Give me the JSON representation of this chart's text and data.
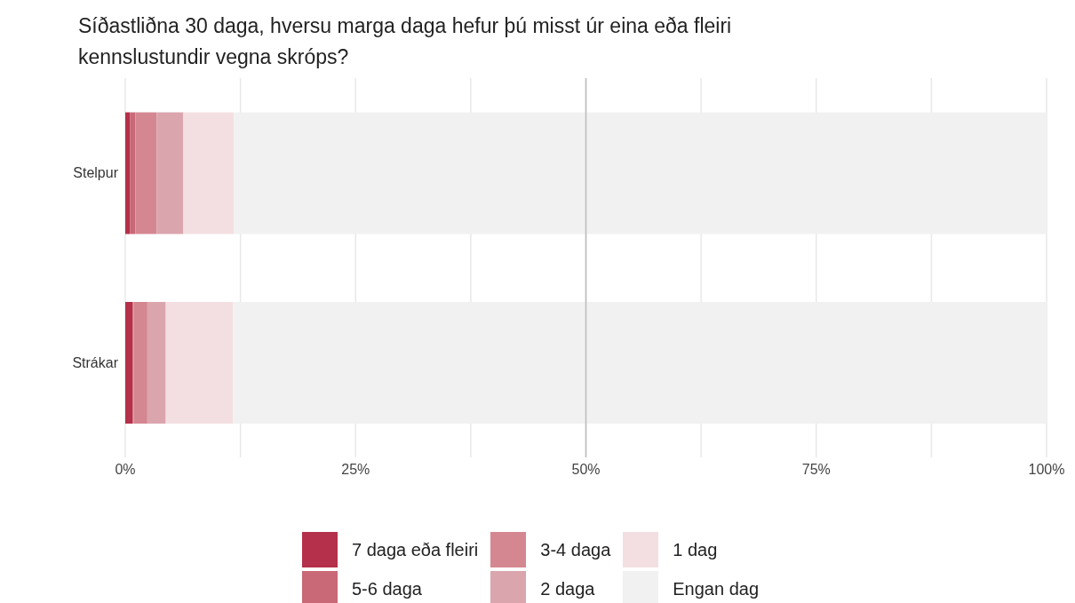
{
  "chart_data": {
    "type": "bar",
    "orientation": "horizontal",
    "stacked": true,
    "title": "Síðastliðna 30 daga, hversu marga daga hefur þú misst úr eina eða fleiri kennslustundir vegna skróps?",
    "categories": [
      "Stelpur",
      "Strákar"
    ],
    "series": [
      {
        "name": "7 daga eða fleiri",
        "color": "#b5304a",
        "values": [
          0.5,
          0.8
        ]
      },
      {
        "name": "5-6 daga",
        "color": "#c96876",
        "values": [
          0.6,
          0.1
        ]
      },
      {
        "name": "3-4 daga",
        "color": "#d48791",
        "values": [
          2.3,
          1.5
        ]
      },
      {
        "name": "2 daga",
        "color": "#dba5ad",
        "values": [
          2.9,
          2.0
        ]
      },
      {
        "name": "1 dag",
        "color": "#f3dfe2",
        "values": [
          5.5,
          7.3
        ]
      },
      {
        "name": "Engan dag",
        "color": "#f1f1f1",
        "values": [
          88.2,
          88.3
        ]
      }
    ],
    "xlim": [
      0,
      100
    ],
    "xticks": [
      {
        "value": 0,
        "label": "0%"
      },
      {
        "value": 12.5,
        "label": null
      },
      {
        "value": 25,
        "label": "25%"
      },
      {
        "value": 37.5,
        "label": null
      },
      {
        "value": 50,
        "label": "50%"
      },
      {
        "value": 62.5,
        "label": null
      },
      {
        "value": 75,
        "label": "75%"
      },
      {
        "value": 87.5,
        "label": null
      },
      {
        "value": 100,
        "label": "100%"
      }
    ],
    "ref_lines": [
      {
        "axis": "x",
        "value": 50,
        "color": "#bbbbbb"
      }
    ],
    "grid": "x",
    "legend": "bottom"
  }
}
